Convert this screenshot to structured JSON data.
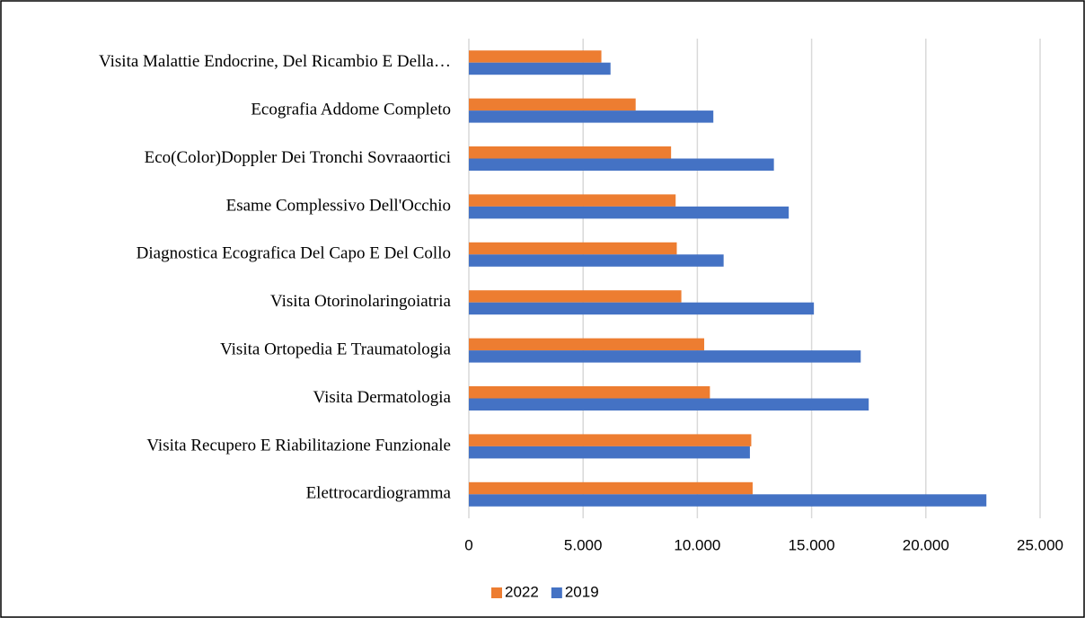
{
  "chart_data": {
    "type": "bar",
    "orientation": "horizontal",
    "categories": [
      "Visita Malattie Endocrine, Del Ricambio E Della…",
      "Ecografia Addome Completo",
      "Eco(Color)Doppler Dei Tronchi Sovraaortici",
      "Esame Complessivo Dell'Occhio",
      "Diagnostica Ecografica Del Capo E Del Collo",
      "Visita Otorinolaringoiatria",
      "Visita Ortopedia E Traumatologia",
      "Visita Dermatologia",
      "Visita Recupero E Riabilitazione Funzionale",
      "Elettrocardiogramma"
    ],
    "series": [
      {
        "name": "2022",
        "color": "#ed7d31",
        "values": [
          5800,
          7300,
          8850,
          9050,
          9100,
          9300,
          10300,
          10550,
          12360,
          12420
        ]
      },
      {
        "name": "2019",
        "color": "#4472c4",
        "values": [
          6200,
          10700,
          13350,
          14000,
          11150,
          15100,
          17150,
          17500,
          12300,
          22650
        ]
      }
    ],
    "xlim": [
      0,
      25000
    ],
    "xticks": [
      0,
      {
        "value": 5000,
        "label": "5.000"
      },
      {
        "value": 10000,
        "label": "10.000"
      },
      {
        "value": 15000,
        "label": "15.000"
      },
      {
        "value": 20000,
        "label": "20.000"
      },
      {
        "value": 25000,
        "label": "25.000"
      }
    ],
    "grid": true,
    "legend": "bottom"
  }
}
